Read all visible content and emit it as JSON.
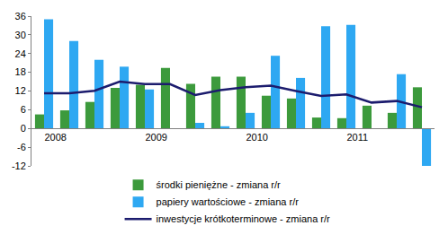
{
  "chart_data": {
    "type": "bar",
    "categories": [
      "2008",
      null,
      null,
      null,
      "2009",
      null,
      null,
      null,
      "2010",
      null,
      null,
      null,
      "2011",
      null,
      null,
      null
    ],
    "series": [
      {
        "name": "środki pieniężne - zmiana r/r",
        "type": "bar",
        "color": "#3c9a3c",
        "values": [
          4.5,
          5.8,
          8.5,
          13.0,
          14.0,
          19.4,
          14.3,
          16.6,
          16.6,
          10.5,
          9.6,
          3.5,
          3.3,
          7.3,
          5.0,
          13.2
        ]
      },
      {
        "name": "papiery wartościowe - zmiana r/r",
        "type": "bar",
        "color": "#2ea8f2",
        "values": [
          35.0,
          28.0,
          22.0,
          19.8,
          12.5,
          0,
          1.8,
          0.7,
          5.0,
          23.3,
          16.2,
          32.8,
          33.2,
          0,
          17.4,
          -12.0
        ]
      },
      {
        "name": "inwestycje krótkoterminowe - zmiana r/r",
        "type": "line",
        "color": "#1c1c6e",
        "values": [
          11.3,
          11.3,
          12.1,
          15.0,
          14.2,
          14.2,
          10.7,
          12.3,
          13.2,
          13.7,
          12.0,
          10.4,
          10.9,
          8.3,
          8.8,
          6.8
        ]
      }
    ],
    "ylim": [
      -12,
      36
    ],
    "yticks": [
      -12,
      -6,
      0,
      6,
      12,
      18,
      24,
      30,
      36
    ],
    "grid": false,
    "legend": "bottom"
  }
}
